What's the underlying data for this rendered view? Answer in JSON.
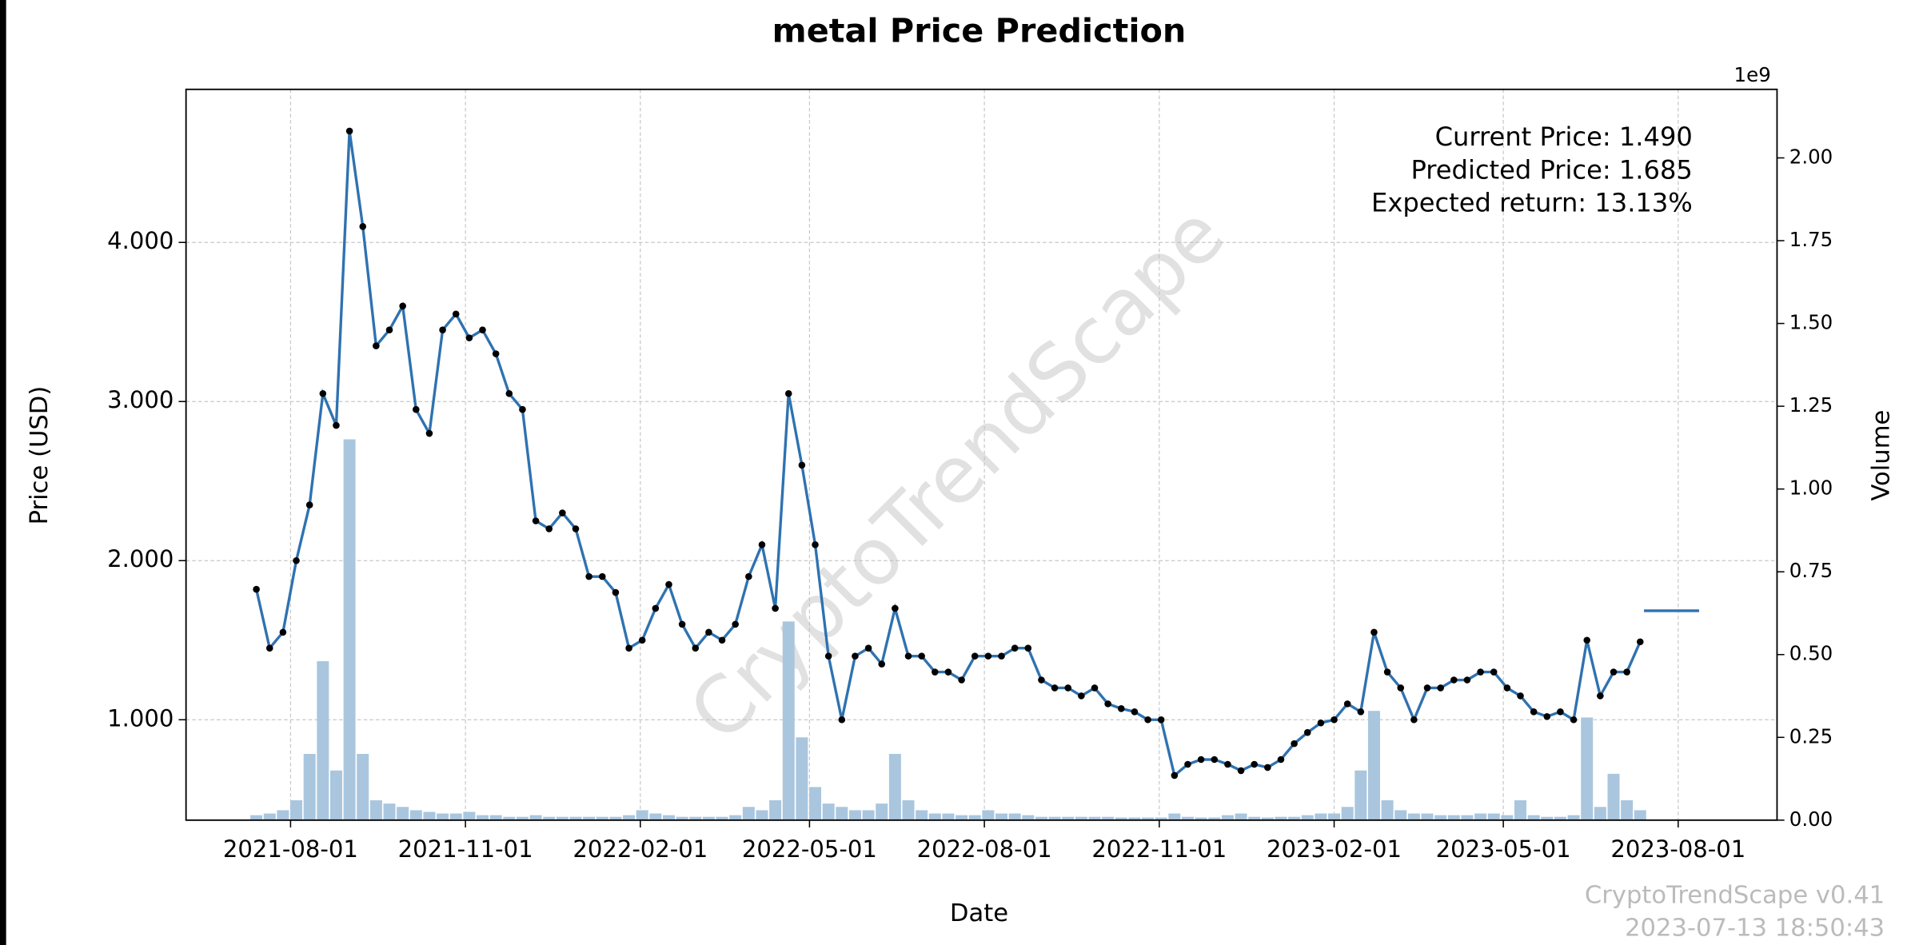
{
  "chart_data": {
    "type": "line",
    "title": "metal Price Prediction",
    "xlabel": "Date",
    "ylabel": "Price (USD)",
    "y2label": "Volume",
    "y2_offset_label": "1e9",
    "watermark": "CryptoTrendScape",
    "footer": [
      "CryptoTrendScape v0.41",
      "2023-07-13 18:50:43"
    ],
    "annotations": [
      "Current Price: 1.490",
      "Predicted Price: 1.685",
      "Expected return: 13.13%"
    ],
    "grid": true,
    "xlim": [
      "2021-06-07",
      "2023-09-22"
    ],
    "xticks": [
      "2021-08-01",
      "2021-11-01",
      "2022-02-01",
      "2022-05-01",
      "2022-08-01",
      "2022-11-01",
      "2023-02-01",
      "2023-05-01",
      "2023-08-01"
    ],
    "ylim": [
      0.369,
      4.962
    ],
    "yticks": [
      {
        "value": 1,
        "label": "1.000"
      },
      {
        "value": 2,
        "label": "2.000"
      },
      {
        "value": 3,
        "label": "3.000"
      },
      {
        "value": 4,
        "label": "4.000"
      }
    ],
    "y2lim": [
      0,
      2207000000
    ],
    "y2ticks": [
      {
        "value": 0,
        "label": "0.00"
      },
      {
        "value": 250000000,
        "label": "0.25"
      },
      {
        "value": 500000000,
        "label": "0.50"
      },
      {
        "value": 750000000,
        "label": "0.75"
      },
      {
        "value": 1000000000,
        "label": "1.00"
      },
      {
        "value": 1250000000,
        "label": "1.25"
      },
      {
        "value": 1500000000,
        "label": "1.50"
      },
      {
        "value": 1750000000,
        "label": "1.75"
      },
      {
        "value": 2000000000,
        "label": "2.00"
      }
    ],
    "x": [
      "2021-07-14",
      "2021-07-21",
      "2021-07-28",
      "2021-08-04",
      "2021-08-11",
      "2021-08-18",
      "2021-08-25",
      "2021-09-01",
      "2021-09-08",
      "2021-09-15",
      "2021-09-22",
      "2021-09-29",
      "2021-10-06",
      "2021-10-13",
      "2021-10-20",
      "2021-10-27",
      "2021-11-03",
      "2021-11-10",
      "2021-11-17",
      "2021-11-24",
      "2021-12-01",
      "2021-12-08",
      "2021-12-15",
      "2021-12-22",
      "2021-12-29",
      "2022-01-05",
      "2022-01-12",
      "2022-01-19",
      "2022-01-26",
      "2022-02-02",
      "2022-02-09",
      "2022-02-16",
      "2022-02-23",
      "2022-03-02",
      "2022-03-09",
      "2022-03-16",
      "2022-03-23",
      "2022-03-30",
      "2022-04-06",
      "2022-04-13",
      "2022-04-20",
      "2022-04-27",
      "2022-05-04",
      "2022-05-11",
      "2022-05-18",
      "2022-05-25",
      "2022-06-01",
      "2022-06-08",
      "2022-06-15",
      "2022-06-22",
      "2022-06-29",
      "2022-07-06",
      "2022-07-13",
      "2022-07-20",
      "2022-07-27",
      "2022-08-03",
      "2022-08-10",
      "2022-08-17",
      "2022-08-24",
      "2022-08-31",
      "2022-09-07",
      "2022-09-14",
      "2022-09-21",
      "2022-09-28",
      "2022-10-05",
      "2022-10-12",
      "2022-10-19",
      "2022-10-26",
      "2022-11-02",
      "2022-11-09",
      "2022-11-16",
      "2022-11-23",
      "2022-11-30",
      "2022-12-07",
      "2022-12-14",
      "2022-12-21",
      "2022-12-28",
      "2023-01-04",
      "2023-01-11",
      "2023-01-18",
      "2023-01-25",
      "2023-02-01",
      "2023-02-08",
      "2023-02-15",
      "2023-02-22",
      "2023-03-01",
      "2023-03-08",
      "2023-03-15",
      "2023-03-22",
      "2023-03-29",
      "2023-04-05",
      "2023-04-12",
      "2023-04-19",
      "2023-04-26",
      "2023-05-03",
      "2023-05-10",
      "2023-05-17",
      "2023-05-24",
      "2023-05-31",
      "2023-06-07",
      "2023-06-14",
      "2023-06-21",
      "2023-06-28",
      "2023-07-05",
      "2023-07-12"
    ],
    "series": [
      {
        "color": "#2f72b0",
        "marker_color": "#000000",
        "values": [
          1.82,
          1.45,
          1.55,
          2.0,
          2.35,
          3.05,
          2.85,
          4.7,
          4.1,
          3.35,
          3.45,
          3.6,
          2.95,
          2.8,
          3.45,
          3.55,
          3.4,
          3.45,
          3.3,
          3.05,
          2.95,
          2.25,
          2.2,
          2.3,
          2.2,
          1.9,
          1.9,
          1.8,
          1.45,
          1.5,
          1.7,
          1.85,
          1.6,
          1.45,
          1.55,
          1.5,
          1.6,
          1.9,
          2.1,
          1.7,
          3.05,
          2.6,
          2.1,
          1.4,
          1.0,
          1.4,
          1.45,
          1.35,
          1.7,
          1.4,
          1.4,
          1.3,
          1.3,
          1.25,
          1.4,
          1.4,
          1.4,
          1.45,
          1.45,
          1.25,
          1.2,
          1.2,
          1.15,
          1.2,
          1.1,
          1.07,
          1.05,
          1.0,
          1.0,
          0.65,
          0.72,
          0.75,
          0.75,
          0.72,
          0.68,
          0.72,
          0.7,
          0.75,
          0.85,
          0.92,
          0.98,
          1.0,
          1.1,
          1.05,
          1.55,
          1.3,
          1.2,
          1.0,
          1.2,
          1.2,
          1.25,
          1.25,
          1.3,
          1.3,
          1.2,
          1.15,
          1.05,
          1.02,
          1.05,
          1.0,
          1.5,
          1.15,
          1.3,
          1.3,
          1.49
        ]
      },
      {
        "type": "bar",
        "axis": "y2",
        "color": "#a9c6de",
        "values": [
          15000000,
          20000000,
          30000000,
          60000000,
          200000000,
          480000000,
          150000000,
          1150000000,
          200000000,
          60000000,
          50000000,
          40000000,
          30000000,
          25000000,
          20000000,
          20000000,
          25000000,
          15000000,
          15000000,
          10000000,
          10000000,
          15000000,
          10000000,
          10000000,
          10000000,
          10000000,
          10000000,
          10000000,
          15000000,
          30000000,
          20000000,
          15000000,
          10000000,
          10000000,
          10000000,
          10000000,
          15000000,
          40000000,
          30000000,
          60000000,
          600000000,
          250000000,
          100000000,
          50000000,
          40000000,
          30000000,
          30000000,
          50000000,
          200000000,
          60000000,
          30000000,
          20000000,
          20000000,
          15000000,
          15000000,
          30000000,
          20000000,
          20000000,
          15000000,
          10000000,
          10000000,
          10000000,
          10000000,
          10000000,
          10000000,
          8000000,
          8000000,
          8000000,
          8000000,
          20000000,
          10000000,
          8000000,
          8000000,
          15000000,
          20000000,
          10000000,
          8000000,
          10000000,
          10000000,
          15000000,
          20000000,
          20000000,
          40000000,
          150000000,
          330000000,
          60000000,
          30000000,
          20000000,
          20000000,
          15000000,
          15000000,
          15000000,
          20000000,
          20000000,
          15000000,
          60000000,
          15000000,
          10000000,
          10000000,
          15000000,
          310000000,
          40000000,
          140000000,
          60000000,
          30000000
        ]
      },
      {
        "color": "#2f72b0",
        "x": [
          "2023-07-14",
          "2023-08-12"
        ],
        "values": [
          1.685,
          1.685
        ]
      }
    ]
  }
}
